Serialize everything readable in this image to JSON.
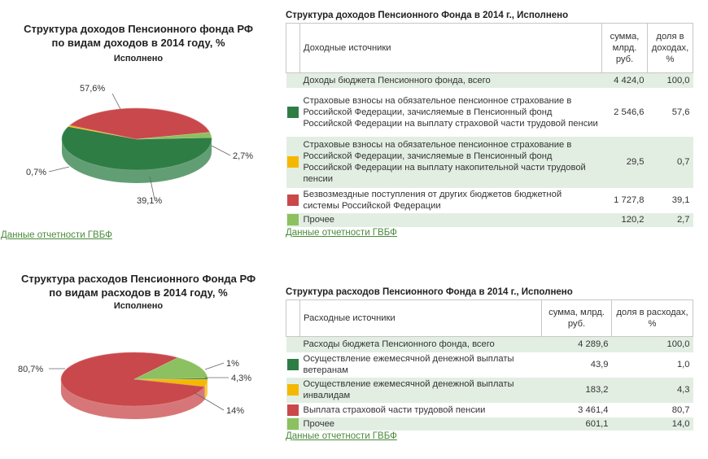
{
  "income_chart": {
    "title_line1": "Структура доходов Пенсионного фонда РФ",
    "title_line2": "по видам доходов в 2014 году, %",
    "subtitle": "Исполнено",
    "source_link": "Данные отчетности ГВБФ"
  },
  "expense_chart": {
    "title_line1": "Структура расходов Пенсионного Фонда РФ",
    "title_line2": "по видам расходов в 2014 году, %",
    "subtitle": "Исполнено",
    "source_link": "Данные отчетности ГВБФ"
  },
  "income_table": {
    "title": "Структура доходов Пенсионного Фонда в 2014 г., Исполнено",
    "headers": [
      "Доходные источники",
      "сумма, млрд. руб.",
      "доля в доходах, %"
    ],
    "total": {
      "label": "Доходы бюджета Пенсионного фонда, всего",
      "sum": "4 424,0",
      "share": "100,0"
    },
    "rows": [
      {
        "label": "Страховые взносы на обязательное пенсионное страхование в Российской Федерации, зачисляемые в Пенсионный фонд Российской Федерации на выплату страховой части трудовой пенсии",
        "sum": "2 546,6",
        "share": "57,6"
      },
      {
        "label": "Страховые взносы на обязательное пенсионное страхование в Российской Федерации, зачисляемые в Пенсионный фонд Российской Федерации на выплату накопительной части трудовой пенсии",
        "sum": "29,5",
        "share": "0,7"
      },
      {
        "label": "Безвозмездные поступления от других бюджетов бюджетной системы Российской Федерации",
        "sum": "1 727,8",
        "share": "39,1"
      },
      {
        "label": "Прочее",
        "sum": "120,2",
        "share": "2,7"
      }
    ],
    "source_link": "Данные отчетности ГВБФ"
  },
  "expense_table": {
    "title": "Структура расходов Пенсионного Фонда в 2014 г., Исполнено",
    "headers": [
      "Расходные источники",
      "сумма, млрд. руб.",
      "доля в расходах, %"
    ],
    "total": {
      "label": "Расходы бюджета Пенсионного фонда, всего",
      "sum": "4 289,6",
      "share": "100,0"
    },
    "rows": [
      {
        "label": "Осуществление ежемесячной денежной выплаты ветеранам",
        "sum": "43,9",
        "share": "1,0"
      },
      {
        "label": "Осуществление ежемесячной денежной выплаты инвалидам",
        "sum": "183,2",
        "share": "4,3"
      },
      {
        "label": "Выплата страховой части трудовой пенсии",
        "sum": "3 461,4",
        "share": "80,7"
      },
      {
        "label": "Прочее",
        "sum": "601,1",
        "share": "14,0"
      }
    ],
    "source_link": "Данные отчетности ГВБФ"
  },
  "colors": {
    "dark_green": "#2e7d45",
    "yellow": "#f5b800",
    "red": "#c9484b",
    "light_green": "#8cc060"
  },
  "chart_data": [
    {
      "type": "pie",
      "title": "Структура доходов Пенсионного фонда РФ по видам доходов в 2014 году, %",
      "subtitle": "Исполнено",
      "labels": [
        "57,6%",
        "0,7%",
        "39,1%",
        "2,7%"
      ],
      "values": [
        57.6,
        0.7,
        39.1,
        2.7
      ],
      "colors": [
        "#2e7d45",
        "#f5b800",
        "#c9484b",
        "#8cc060"
      ],
      "start_angle_deg": -3,
      "label_sides": [
        "top-left",
        "left",
        "bottom",
        "right"
      ]
    },
    {
      "type": "pie",
      "title": "Структура расходов Пенсионного Фонда РФ по видам расходов в 2014 году, %",
      "subtitle": "Исполнено",
      "labels": [
        "1%",
        "4,3%",
        "80,7%",
        "14%"
      ],
      "values": [
        1.0,
        4.3,
        80.7,
        14.0
      ],
      "colors": [
        "#2e7d45",
        "#f5b800",
        "#c9484b",
        "#8cc060"
      ],
      "start_angle_deg": -3,
      "label_sides": [
        "right",
        "right",
        "left",
        "bottom-right"
      ]
    }
  ]
}
